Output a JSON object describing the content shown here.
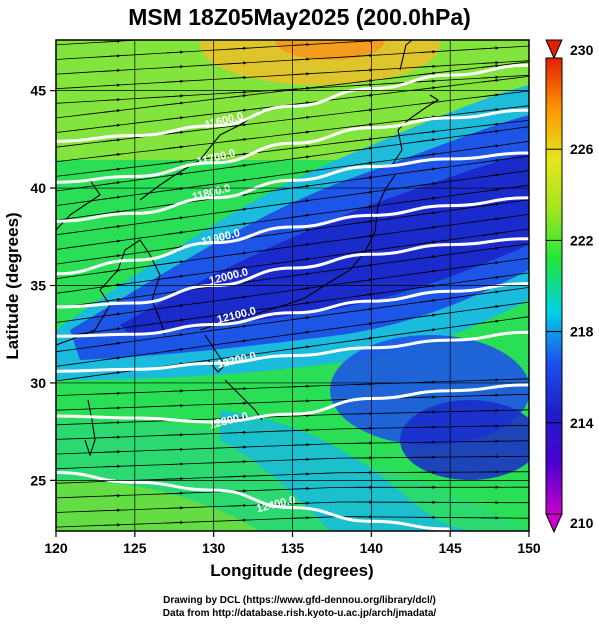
{
  "title": "MSM 18Z05May2025 (200.0hPa)",
  "credit": {
    "line1": "Drawing by DCL (https://www.gfd-dennou.org/library/dcl/)",
    "line2": "Data from http://database.rish.kyoto-u.ac.jp/arch/jmadata/"
  },
  "chart_data": {
    "type": "heatmap",
    "title": "MSM 18Z05May2025 (200.0hPa)",
    "xlabel": "Longitude (degrees)",
    "ylabel": "Latitude  (degrees)",
    "xlim": [
      120,
      150
    ],
    "ylim": [
      22.4,
      47.6
    ],
    "x_ticks": [
      120,
      125,
      130,
      135,
      140,
      145,
      150
    ],
    "y_ticks": [
      25,
      30,
      35,
      40,
      45
    ],
    "grid": true,
    "colorbar": {
      "range": [
        210,
        230
      ],
      "ticks": [
        210,
        214,
        218,
        222,
        226,
        230
      ],
      "colors": [
        "#c800c8",
        "#4b00d2",
        "#1e1ec8",
        "#1e50f0",
        "#00d2e6",
        "#1ee63c",
        "#a0e61e",
        "#e6e61e",
        "#ff9600",
        "#e61e00"
      ]
    },
    "contour_labels": [
      "11600.0",
      "11700.0",
      "11800.0",
      "11900.0",
      "12000.0",
      "12100.0",
      "12200.0",
      "12300.0",
      "12400.0"
    ],
    "contours": [
      {
        "value": 11600,
        "label_at": [
          130.7,
          43.3
        ],
        "points": [
          [
            120,
            42.4
          ],
          [
            125,
            42.7
          ],
          [
            130,
            43.2
          ],
          [
            135,
            44.2
          ],
          [
            140,
            45.1
          ],
          [
            145,
            45.8
          ],
          [
            150,
            46.3
          ]
        ]
      },
      {
        "value": 11700,
        "label_at": [
          130.2,
          41.4
        ],
        "points": [
          [
            120,
            40.3
          ],
          [
            125,
            40.6
          ],
          [
            130,
            41.3
          ],
          [
            135,
            42.3
          ],
          [
            140,
            43.1
          ],
          [
            145,
            43.6
          ],
          [
            150,
            44.0
          ]
        ]
      },
      {
        "value": 11800,
        "label_at": [
          129.9,
          39.6
        ],
        "points": [
          [
            120,
            38.3
          ],
          [
            125,
            38.7
          ],
          [
            130,
            39.5
          ],
          [
            135,
            40.4
          ],
          [
            140,
            41.1
          ],
          [
            145,
            41.5
          ],
          [
            150,
            41.8
          ]
        ]
      },
      {
        "value": 11900,
        "label_at": [
          130.5,
          37.3
        ],
        "points": [
          [
            120,
            35.6
          ],
          [
            125,
            36.3
          ],
          [
            130,
            37.2
          ],
          [
            135,
            38.0
          ],
          [
            140,
            38.6
          ],
          [
            145,
            39.1
          ],
          [
            150,
            39.5
          ]
        ]
      },
      {
        "value": 12000,
        "label_at": [
          131.0,
          35.3
        ],
        "points": [
          [
            120,
            33.9
          ],
          [
            125,
            34.1
          ],
          [
            130,
            35.0
          ],
          [
            135,
            35.9
          ],
          [
            140,
            36.6
          ],
          [
            145,
            37.1
          ],
          [
            150,
            37.4
          ]
        ]
      },
      {
        "value": 12100,
        "label_at": [
          131.5,
          33.3
        ],
        "points": [
          [
            120,
            32.4
          ],
          [
            125,
            32.5
          ],
          [
            130,
            33.0
          ],
          [
            135,
            33.6
          ],
          [
            140,
            34.2
          ],
          [
            145,
            34.7
          ],
          [
            150,
            35.1
          ]
        ]
      },
      {
        "value": 12200,
        "label_at": [
          131.5,
          31.0
        ],
        "points": [
          [
            120,
            30.6
          ],
          [
            125,
            30.7
          ],
          [
            130,
            31.0
          ],
          [
            135,
            31.4
          ],
          [
            140,
            31.8
          ],
          [
            145,
            32.2
          ],
          [
            150,
            32.6
          ]
        ]
      },
      {
        "value": 12300,
        "label_at": [
          131.0,
          27.9
        ],
        "points": [
          [
            120,
            28.3
          ],
          [
            125,
            28.2
          ],
          [
            130,
            28.0
          ],
          [
            135,
            28.4
          ],
          [
            140,
            29.2
          ],
          [
            145,
            29.6
          ],
          [
            150,
            29.9
          ]
        ]
      },
      {
        "value": 12400,
        "label_at": [
          134.0,
          23.6
        ],
        "points": [
          [
            120,
            25.4
          ],
          [
            125,
            24.9
          ],
          [
            130,
            24.5
          ],
          [
            135,
            23.6
          ],
          [
            140,
            22.9
          ],
          [
            145,
            22.5
          ]
        ]
      }
    ]
  }
}
